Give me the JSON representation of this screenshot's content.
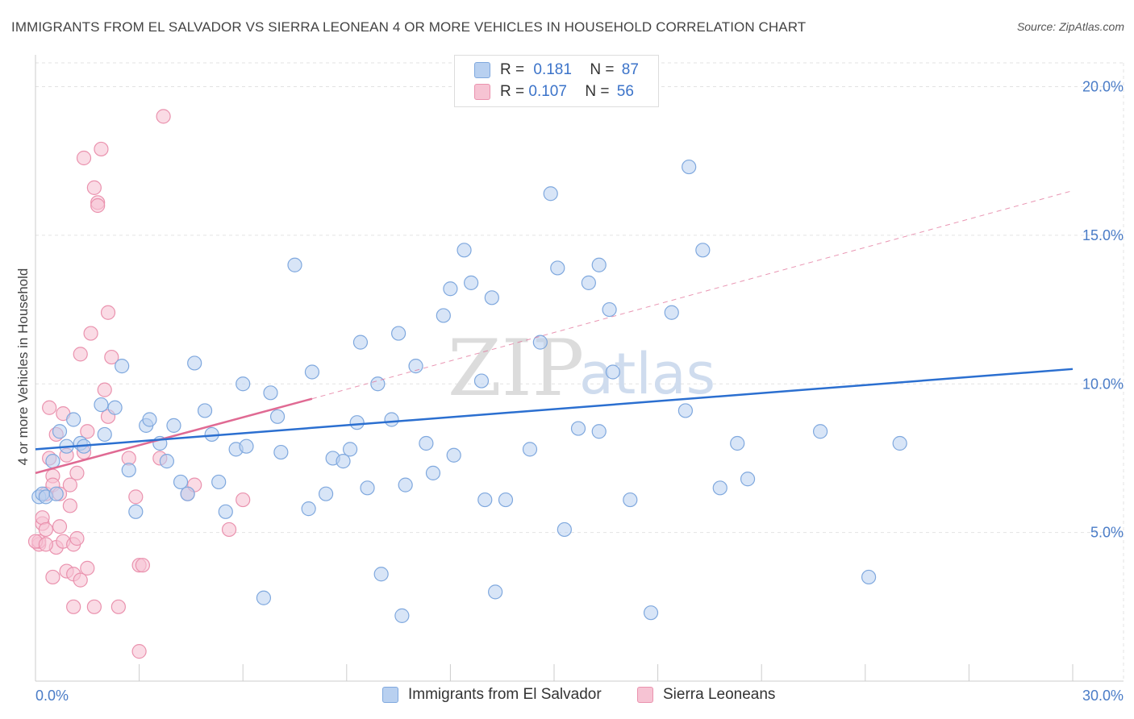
{
  "title": "IMMIGRANTS FROM EL SALVADOR VS SIERRA LEONEAN 4 OR MORE VEHICLES IN HOUSEHOLD CORRELATION CHART",
  "source": "Source: ZipAtlas.com",
  "watermark": {
    "zip": "ZIP",
    "atlas": "atlas"
  },
  "legend": {
    "series1": {
      "r_label": "R =",
      "r_value": "0.181",
      "n_label": "N =",
      "n_value": "87"
    },
    "series2": {
      "r_label": "R =",
      "r_value": "0.107",
      "n_label": "N =",
      "n_value": "56"
    }
  },
  "bottom_legend": {
    "series1": "Immigrants from El Salvador",
    "series2": "Sierra Leoneans"
  },
  "colors": {
    "blue_fill": "#b8d0f0",
    "blue_stroke": "#7fa8de",
    "blue_line": "#2b6fd0",
    "pink_fill": "#f6c3d3",
    "pink_stroke": "#ea92ae",
    "pink_line": "#e06a93",
    "grid": "#e3e3e3",
    "tick_text": "#4a7cc7"
  },
  "chart_data": {
    "type": "scatter",
    "title": "IMMIGRANTS FROM EL SALVADOR VS SIERRA LEONEAN 4 OR MORE VEHICLES IN HOUSEHOLD CORRELATION CHART",
    "xlabel": "",
    "ylabel": "4 or more Vehicles in Household",
    "xlim": [
      0,
      30
    ],
    "ylim": [
      0,
      20.8
    ],
    "x_tick_labels": [
      "0.0%",
      "30.0%"
    ],
    "y_ticks": [
      5,
      10,
      15,
      20
    ],
    "y_tick_labels": [
      "5.0%",
      "10.0%",
      "15.0%",
      "20.0%"
    ],
    "series": [
      {
        "name": "Immigrants from El Salvador",
        "points": [
          [
            0.1,
            6.2
          ],
          [
            0.2,
            6.3
          ],
          [
            0.5,
            7.4
          ],
          [
            0.7,
            8.4
          ],
          [
            0.9,
            7.9
          ],
          [
            1.1,
            8.8
          ],
          [
            1.3,
            8.0
          ],
          [
            1.4,
            7.9
          ],
          [
            1.9,
            9.3
          ],
          [
            2.0,
            8.3
          ],
          [
            2.3,
            9.2
          ],
          [
            2.5,
            10.6
          ],
          [
            2.7,
            7.1
          ],
          [
            2.9,
            5.7
          ],
          [
            3.2,
            8.6
          ],
          [
            3.3,
            8.8
          ],
          [
            3.6,
            8.0
          ],
          [
            3.8,
            7.4
          ],
          [
            4.0,
            8.6
          ],
          [
            4.2,
            6.7
          ],
          [
            4.4,
            6.3
          ],
          [
            4.6,
            10.7
          ],
          [
            4.9,
            9.1
          ],
          [
            5.1,
            8.3
          ],
          [
            5.3,
            6.7
          ],
          [
            5.5,
            5.7
          ],
          [
            5.8,
            7.8
          ],
          [
            6.0,
            10.0
          ],
          [
            6.1,
            7.9
          ],
          [
            6.6,
            2.8
          ],
          [
            6.8,
            9.7
          ],
          [
            7.0,
            8.9
          ],
          [
            7.1,
            7.7
          ],
          [
            7.5,
            14.0
          ],
          [
            7.9,
            5.8
          ],
          [
            8.0,
            10.4
          ],
          [
            8.4,
            6.3
          ],
          [
            8.6,
            7.5
          ],
          [
            8.9,
            7.4
          ],
          [
            9.1,
            7.8
          ],
          [
            9.3,
            8.7
          ],
          [
            9.4,
            11.4
          ],
          [
            9.6,
            6.5
          ],
          [
            9.9,
            10.0
          ],
          [
            10.0,
            3.6
          ],
          [
            10.3,
            8.8
          ],
          [
            10.5,
            11.7
          ],
          [
            10.6,
            2.2
          ],
          [
            10.7,
            6.6
          ],
          [
            11.0,
            10.6
          ],
          [
            11.3,
            8.0
          ],
          [
            11.5,
            7.0
          ],
          [
            11.8,
            12.3
          ],
          [
            12.0,
            13.2
          ],
          [
            12.1,
            7.6
          ],
          [
            12.4,
            14.5
          ],
          [
            12.6,
            13.4
          ],
          [
            12.9,
            10.1
          ],
          [
            13.0,
            6.1
          ],
          [
            13.2,
            12.9
          ],
          [
            13.3,
            3.0
          ],
          [
            13.6,
            6.1
          ],
          [
            14.3,
            7.8
          ],
          [
            14.6,
            11.4
          ],
          [
            14.9,
            16.4
          ],
          [
            15.1,
            13.9
          ],
          [
            15.3,
            5.1
          ],
          [
            15.7,
            8.5
          ],
          [
            16.0,
            13.4
          ],
          [
            16.3,
            14.0
          ],
          [
            16.3,
            8.4
          ],
          [
            16.6,
            12.5
          ],
          [
            16.7,
            10.4
          ],
          [
            17.2,
            6.1
          ],
          [
            17.8,
            2.3
          ],
          [
            18.4,
            12.4
          ],
          [
            18.8,
            9.1
          ],
          [
            18.9,
            17.3
          ],
          [
            19.3,
            14.5
          ],
          [
            19.8,
            6.5
          ],
          [
            20.3,
            8.0
          ],
          [
            20.6,
            6.8
          ],
          [
            22.7,
            8.4
          ],
          [
            24.1,
            3.5
          ],
          [
            25.0,
            8.0
          ],
          [
            0.3,
            6.2
          ],
          [
            0.6,
            6.3
          ]
        ],
        "trend": {
          "x": [
            0,
            30
          ],
          "y": [
            7.8,
            10.5
          ]
        }
      },
      {
        "name": "Sierra Leoneans",
        "points": [
          [
            0.1,
            4.6
          ],
          [
            0.1,
            4.7
          ],
          [
            0.2,
            5.3
          ],
          [
            0.2,
            5.5
          ],
          [
            0.3,
            6.3
          ],
          [
            0.3,
            5.1
          ],
          [
            0.4,
            9.2
          ],
          [
            0.4,
            7.5
          ],
          [
            0.5,
            6.9
          ],
          [
            0.5,
            6.6
          ],
          [
            0.6,
            8.3
          ],
          [
            0.6,
            4.5
          ],
          [
            0.7,
            5.2
          ],
          [
            0.7,
            6.3
          ],
          [
            0.8,
            4.7
          ],
          [
            0.8,
            9.0
          ],
          [
            0.9,
            3.7
          ],
          [
            0.9,
            7.6
          ],
          [
            1.0,
            5.9
          ],
          [
            1.0,
            6.6
          ],
          [
            1.1,
            4.6
          ],
          [
            1.1,
            3.6
          ],
          [
            1.2,
            7.0
          ],
          [
            1.2,
            4.8
          ],
          [
            1.3,
            3.4
          ],
          [
            1.3,
            11.0
          ],
          [
            1.4,
            17.6
          ],
          [
            1.5,
            8.4
          ],
          [
            1.5,
            3.8
          ],
          [
            1.6,
            11.7
          ],
          [
            1.7,
            16.6
          ],
          [
            1.8,
            16.1
          ],
          [
            1.8,
            16.0
          ],
          [
            1.9,
            17.9
          ],
          [
            2.0,
            9.8
          ],
          [
            2.1,
            12.4
          ],
          [
            2.1,
            8.9
          ],
          [
            2.2,
            10.9
          ],
          [
            2.7,
            7.5
          ],
          [
            2.9,
            6.2
          ],
          [
            3.0,
            3.9
          ],
          [
            3.1,
            3.9
          ],
          [
            3.6,
            7.5
          ],
          [
            3.7,
            19.0
          ],
          [
            4.4,
            6.3
          ],
          [
            4.6,
            6.6
          ],
          [
            5.6,
            5.1
          ],
          [
            6.0,
            6.1
          ],
          [
            3.0,
            1.0
          ],
          [
            1.7,
            2.5
          ],
          [
            2.4,
            2.5
          ],
          [
            0.5,
            3.5
          ],
          [
            1.1,
            2.5
          ],
          [
            0.0,
            4.7
          ],
          [
            0.3,
            4.6
          ],
          [
            1.4,
            7.7
          ]
        ],
        "trend": {
          "x": [
            0,
            8.0
          ],
          "y": [
            7.0,
            9.5
          ]
        },
        "trend_ext": {
          "x": [
            8.0,
            30
          ],
          "y": [
            9.5,
            16.5
          ]
        }
      }
    ]
  }
}
